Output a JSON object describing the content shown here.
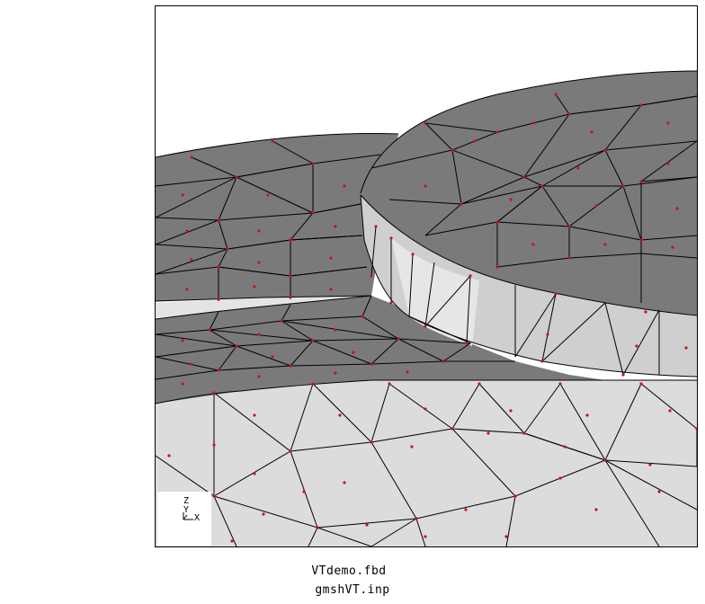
{
  "viewer": {
    "axis_triad": {
      "z_label": "Z",
      "y_label": "Y",
      "x_label": "X"
    },
    "files": [
      "VTdemo.fbd",
      "gmshVT.inp"
    ],
    "colors": {
      "background": "#ffffff",
      "dark_face": "#7a7a7a",
      "light_face": "#dcdcdc",
      "edge": "#000000",
      "node": "#d21010"
    }
  }
}
